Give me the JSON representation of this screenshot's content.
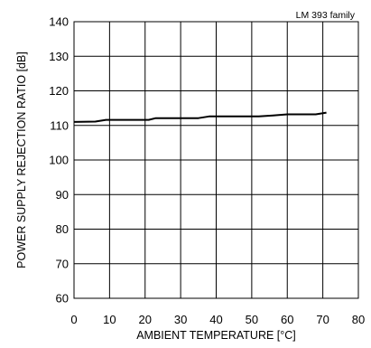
{
  "chart_data": {
    "type": "line",
    "annotation": "LM 393 family",
    "xlabel": "AMBIENT TEMPERATURE [°C]",
    "ylabel": "POWER SUPPLY REJECTION RATIO [dB]",
    "xlim": [
      0,
      80
    ],
    "ylim": [
      60,
      140
    ],
    "xticks": [
      0,
      10,
      20,
      30,
      40,
      50,
      60,
      70,
      80
    ],
    "yticks": [
      60,
      70,
      80,
      90,
      100,
      110,
      120,
      130,
      140
    ],
    "grid": true,
    "series": [
      {
        "x": [
          0,
          6,
          9,
          13,
          17,
          21,
          23,
          27,
          31,
          35,
          38,
          42,
          47,
          52,
          56,
          60,
          64,
          68,
          71
        ],
        "y": [
          111.0,
          111.1,
          111.6,
          111.6,
          111.6,
          111.6,
          112.1,
          112.1,
          112.1,
          112.1,
          112.6,
          112.6,
          112.6,
          112.6,
          112.9,
          113.2,
          113.2,
          113.2,
          113.7
        ]
      }
    ],
    "colors": {
      "line": "#000000",
      "grid": "#000000",
      "background": "#ffffff"
    }
  }
}
